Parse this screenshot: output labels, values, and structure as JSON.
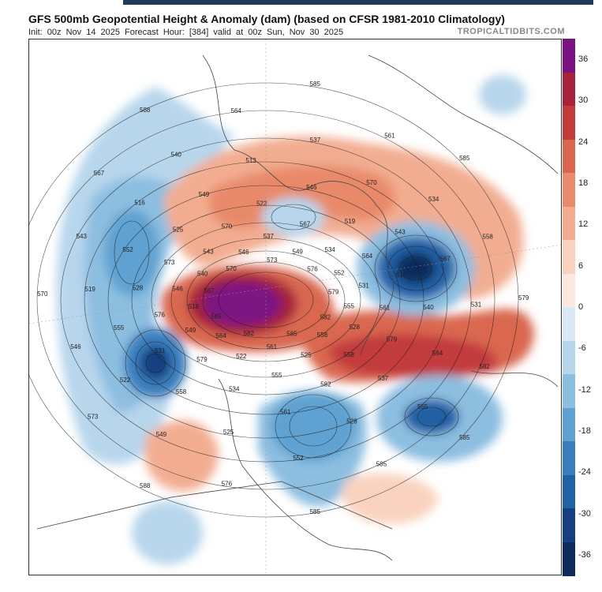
{
  "header": {
    "title": "GFS 500mb Geopotential Height & Anomaly (dam) (based on CFSR 1981-2010 Climatology)",
    "subtitle": "Init: 00z Nov 14 2025   Forecast Hour: [384]   valid at 00z Sun, Nov 30 2025",
    "brand": "TROPICALTIDBITS.COM"
  },
  "colorbar": {
    "ticks": [
      "36",
      "30",
      "24",
      "18",
      "12",
      "6",
      "0",
      "-6",
      "-12",
      "-18",
      "-24",
      "-30",
      "-36"
    ],
    "colors": [
      "#7b1482",
      "#a6233b",
      "#c23b3d",
      "#d9674f",
      "#e88a6b",
      "#f2ad91",
      "#f9d3bf",
      "#fbe9df",
      "#dbe9f4",
      "#b7d6ec",
      "#8cbee0",
      "#5fa1d0",
      "#3a7fbd",
      "#2161a5",
      "#153f81",
      "#0d2a5c"
    ]
  },
  "map": {
    "contour_labels": [
      "579",
      "585",
      "585",
      "588",
      "588",
      "585",
      "585",
      "582",
      "585",
      "576",
      "573",
      "570",
      "567",
      "564",
      "561",
      "558",
      "555",
      "552",
      "549",
      "546",
      "543",
      "540",
      "537",
      "534",
      "531",
      "528",
      "525",
      "522",
      "519",
      "516",
      "513",
      "570",
      "567",
      "564",
      "561",
      "558",
      "555",
      "552",
      "549",
      "546",
      "543",
      "540",
      "537",
      "534",
      "531",
      "528",
      "525",
      "522",
      "519",
      "516",
      "579",
      "582",
      "579",
      "576",
      "573",
      "570",
      "567",
      "564",
      "561",
      "558",
      "555",
      "549",
      "546",
      "543",
      "537",
      "534",
      "531",
      "528",
      "525",
      "522",
      "519",
      "540",
      "546",
      "549",
      "552",
      "555",
      "558",
      "561",
      "564",
      "567",
      "570",
      "573",
      "576",
      "579",
      "582",
      "585",
      "582",
      "585",
      "588",
      "579",
      "582"
    ]
  },
  "icons": {
    "map_background": "blank-projection-map"
  }
}
